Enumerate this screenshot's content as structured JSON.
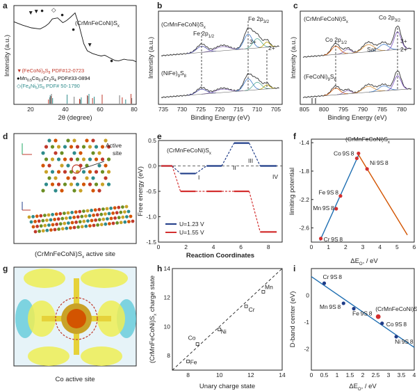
{
  "panels": {
    "a": {
      "label": "a",
      "title": "(CrMnFeCoNi)S",
      "title_sub": "x",
      "xlabel": "2θ (degree)",
      "ylabel": "Intensity (a.u.)",
      "xticks": [
        "20",
        "40",
        "60",
        "80"
      ],
      "legend": [
        {
          "text": "(FeCoNi)",
          "sub": "9",
          "tail": "S",
          "sub2": "8",
          "tail2": " PDF#12-0723",
          "color": "#c0392b",
          "marker": "▼"
        },
        {
          "text": "Mn",
          "sub": "0.5",
          "tail": "Co",
          "sub2": "0.5",
          "tail2": "Cr",
          "sub3": "2",
          "tail3": "S",
          "sub4": "4",
          "tail4": " PDF#33-0894",
          "color": "#111111",
          "marker": "●"
        },
        {
          "text": "(Fe",
          "sub": "4",
          "tail": "Ni",
          "sub2": "5",
          "tail2": ")S",
          "sub3": "8",
          "tail3": " PDF# 50-1790",
          "color": "#2e8b8b",
          "marker": "◇"
        }
      ]
    },
    "b": {
      "label": "b",
      "sample1": "(CrMnFeCoNi)S",
      "sample1_sub": "x",
      "sample2": "(NiFe)",
      "sample2_sub": "9",
      "sample2_tail": "S",
      "sample2_sub2": "8",
      "peak1": "Fe 2p",
      "peak1_sub": "1/2",
      "peak2": "Fe 2p",
      "peak2_sub": "3/2",
      "ox1": "3+",
      "ox2": "2+",
      "xlabel": "Binding Energy (eV)",
      "ylabel": "Intensity (a.u.)",
      "xticks": [
        "735",
        "730",
        "725",
        "720",
        "715",
        "710",
        "705"
      ]
    },
    "c": {
      "label": "c",
      "sample1": "(CrMnFeCoNi)S",
      "sample1_sub": "x",
      "sample2": "(FeCoNi)",
      "sample2_sub": "9",
      "sample2_tail": "S",
      "sample2_sub2": "8",
      "peak1": "Co 2p",
      "peak1_sub": "1/2",
      "peak2": "Co 2p",
      "peak2_sub": "3/2",
      "sat": "Sat",
      "ox1": "3+",
      "ox2": "2+",
      "xlabel": "Binding Energy (eV)",
      "ylabel": "Intensity (a.u.)",
      "xticks": [
        "805",
        "800",
        "795",
        "790",
        "785",
        "780"
      ]
    },
    "d": {
      "label": "d",
      "note1": "Active",
      "note2": "site",
      "caption": "(CrMnFeCoNi)S",
      "caption_sub": "x",
      "caption_tail": " active site"
    },
    "e": {
      "label": "e",
      "title": "(CrMnFeCoNi)S",
      "title_sub": "x",
      "xlabel": "Reaction Coordinates",
      "ylabel": "Free energy (eV)",
      "steps": [
        "I",
        "II",
        "III",
        "IV"
      ],
      "legend": [
        "U=1.23 V",
        "U=1.55 V"
      ]
    },
    "f": {
      "label": "f",
      "title": "(CrMnFeCoNi)S",
      "title_sub": "x",
      "ylabel": "limiting potential"
    },
    "g": {
      "label": "g",
      "caption": "Co active site"
    },
    "h": {
      "label": "h",
      "xlabel": "Unary charge state",
      "ylabel": "(CrMnFeCoNi)S",
      "ylabel_sub": "x",
      "ylabel_tail": " charge state"
    },
    "i": {
      "label": "i",
      "ylabel": "D-band center (eV)",
      "title": "(CrMnFeCoNi)S",
      "title_sub": "x"
    }
  },
  "chart_data": [
    {
      "panel": "a",
      "type": "line",
      "title": "(CrMnFeCoNi)Sx",
      "xlabel": "2θ (degree)",
      "ylabel": "Intensity (a.u.)",
      "xlim": [
        10,
        80
      ],
      "x": [
        10,
        15,
        20,
        25,
        28,
        30,
        32,
        35,
        38,
        40,
        42,
        45,
        47,
        50,
        52,
        55,
        58,
        60,
        62,
        65,
        68,
        70,
        73,
        75,
        78,
        80
      ],
      "y": [
        0.88,
        0.84,
        0.8,
        0.77,
        0.8,
        0.84,
        0.92,
        0.95,
        0.88,
        0.9,
        0.93,
        1.0,
        0.85,
        0.55,
        0.45,
        0.4,
        0.36,
        0.34,
        0.36,
        0.33,
        0.3,
        0.29,
        0.3,
        0.28,
        0.28,
        0.27
      ],
      "reference_lines": {
        "red": [
          29.8,
          31.2,
          47.6,
          52.0,
          55.0,
          60.5,
          72.0,
          77.0
        ],
        "gray": [
          30.0,
          31.0,
          44.0,
          47.5,
          51.8,
          55.5,
          70.0,
          77.0
        ],
        "teal": [
          29.8,
          31.2,
          39.5,
          47.6,
          52.0,
          55.0,
          73.0
        ]
      }
    },
    {
      "panel": "b",
      "type": "line",
      "xlabel": "Binding Energy (eV)",
      "ylabel": "Intensity (a.u.)",
      "xlim": [
        735,
        704
      ],
      "series": [
        {
          "name": "(CrMnFeCoNi)Sx"
        },
        {
          "name": "(NiFe)9S8"
        }
      ],
      "peaks": {
        "Fe 2p1/2": 724.2,
        "Fe 2p3/2": 711.0,
        "Fe2+": 707.0
      }
    },
    {
      "panel": "c",
      "type": "line",
      "xlabel": "Binding Energy (eV)",
      "ylabel": "Intensity (a.u.)",
      "xlim": [
        806,
        777
      ],
      "series": [
        {
          "name": "(CrMnFeCoNi)Sx"
        },
        {
          "name": "(FeCoNi)9S8"
        }
      ],
      "peaks": {
        "Co 2p1/2": 796.9,
        "Co 2p3/2": 781.5,
        "Sat": 786.0
      }
    },
    {
      "panel": "e",
      "type": "line",
      "xlabel": "Reaction Coordinates",
      "ylabel": "Free energy (eV)",
      "xlim": [
        0,
        9
      ],
      "ylim": [
        -1.5,
        0.5
      ],
      "yticks": [
        -1.5,
        -1.0,
        -0.5,
        0.0,
        0.5
      ],
      "series": [
        {
          "name": "U=1.23 V",
          "color": "#1f3c88",
          "steps": [
            [
              0.2,
              1.0,
              0.0
            ],
            [
              1.6,
              2.7,
              -0.15
            ],
            [
              3.5,
              4.6,
              0.0
            ],
            [
              5.5,
              6.6,
              0.45
            ],
            [
              7.4,
              8.6,
              0.0
            ]
          ]
        },
        {
          "name": "U=1.55 V",
          "color": "#d32f2f",
          "steps": [
            [
              0.2,
              1.0,
              0.0
            ],
            [
              1.6,
              2.7,
              -0.5
            ],
            [
              3.5,
              4.6,
              -0.5
            ],
            [
              5.5,
              6.6,
              -0.5
            ],
            [
              7.4,
              8.6,
              -1.3
            ]
          ]
        }
      ]
    },
    {
      "panel": "f",
      "type": "scatter",
      "xlabel": "ΔEO, / eV",
      "ylabel": "limiting potential",
      "xlim": [
        0,
        6
      ],
      "ylim": [
        -2.8,
        -1.35
      ],
      "yticks": [
        -2.6,
        -2.2,
        -1.8,
        -1.4
      ],
      "xticks": [
        0,
        1,
        2,
        3,
        4,
        5,
        6
      ],
      "points": [
        {
          "label": "Cr9S8",
          "x": 0.55,
          "y": -2.75,
          "color": "#d32f2f"
        },
        {
          "label": "Mn9S8",
          "x": 1.45,
          "y": -2.33,
          "color": "#d32f2f"
        },
        {
          "label": "Fe9S8",
          "x": 1.7,
          "y": -2.15,
          "color": "#d32f2f"
        },
        {
          "label": "Co9S8",
          "x": 2.65,
          "y": -1.62,
          "color": "#d32f2f"
        },
        {
          "label": "(CrMnFeCoNi)Sx",
          "x": 2.75,
          "y": -1.55,
          "color": "#d32f2f"
        },
        {
          "label": "Ni9S8",
          "x": 3.25,
          "y": -1.77,
          "color": "#d32f2f"
        }
      ],
      "lines": [
        {
          "x": [
            0.5,
            2.8
          ],
          "y": [
            -2.78,
            -1.55
          ],
          "color": "#1f6fb2"
        },
        {
          "x": [
            2.7,
            5.6
          ],
          "y": [
            -1.55,
            -2.7
          ],
          "color": "#d35400"
        }
      ]
    },
    {
      "panel": "h",
      "type": "scatter",
      "xlabel": "Unary charge state",
      "ylabel": "(CrMnFeCoNi)Sx charge state",
      "xlim": [
        7,
        14
      ],
      "ylim": [
        7,
        14
      ],
      "xticks": [
        8,
        10,
        12,
        14
      ],
      "yticks": [
        8,
        10,
        12,
        14
      ],
      "points": [
        {
          "label": "Fe",
          "x": 8.0,
          "y": 7.6
        },
        {
          "label": "Co",
          "x": 8.6,
          "y": 8.8
        },
        {
          "label": "Ni",
          "x": 10.0,
          "y": 9.8
        },
        {
          "label": "Cr",
          "x": 11.7,
          "y": 11.4
        },
        {
          "label": "Mn",
          "x": 12.8,
          "y": 12.4
        }
      ],
      "reference_line": {
        "x": [
          7,
          14
        ],
        "y": [
          7,
          14
        ],
        "style": "dashed"
      }
    },
    {
      "panel": "i",
      "type": "scatter",
      "xlabel": "ΔEO, / eV",
      "ylabel": "D-band center (eV)",
      "xlim": [
        0,
        4
      ],
      "ylim": [
        -2.8,
        1.0
      ],
      "xticks": [
        0,
        0.5,
        1,
        1.5,
        2,
        2.5,
        3,
        3.5,
        4
      ],
      "yticks": [
        -2,
        -1,
        0
      ],
      "points": [
        {
          "label": "Cr9S8",
          "x": 0.5,
          "y": 0.45,
          "color": "#1f3c88"
        },
        {
          "label": "Mn9S8",
          "x": 1.25,
          "y": -0.3,
          "color": "#1f3c88"
        },
        {
          "label": "Fe9S8",
          "x": 1.65,
          "y": -0.5,
          "color": "#1f3c88"
        },
        {
          "label": "(CrMnFeCoNi)Sx",
          "x": 2.6,
          "y": -0.8,
          "color": "#d32f2f"
        },
        {
          "label": "Co9S8",
          "x": 2.75,
          "y": -1.05,
          "color": "#1f3c88"
        },
        {
          "label": "Ni9S8",
          "x": 3.3,
          "y": -1.55,
          "color": "#1f3c88"
        }
      ],
      "fit_line": {
        "x": [
          0,
          4
        ],
        "y": [
          0.7,
          -1.95
        ],
        "color": "#1f6fb2"
      }
    }
  ]
}
